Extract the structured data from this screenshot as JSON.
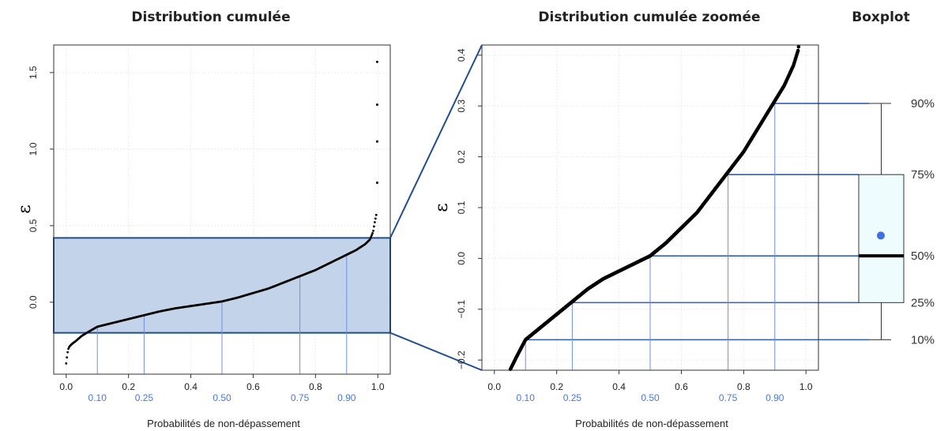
{
  "colors": {
    "points": "#000000",
    "guide": "#2e5fbf",
    "guide_light": "#6f8fe0",
    "highlight_fill": "#b9cbe6",
    "highlight_stroke": "#1f4e8c",
    "box_fill": "#eefcfd",
    "mean_point": "#3f6fe0",
    "blue_tick": "#4a78d6"
  },
  "chart_data": [
    {
      "id": "left",
      "type": "scatter",
      "title": "Distribution cumulée",
      "xlabel": "Probabilités de non-dépassement",
      "ylabel": "ε",
      "xlim": [
        -0.04,
        1.04
      ],
      "ylim": [
        -0.47,
        1.68
      ],
      "xticks": [
        "0.0",
        "0.2",
        "0.4",
        "0.6",
        "0.8",
        "1.0"
      ],
      "yticks": [
        "0.0",
        "0.5",
        "1.0",
        "1.5"
      ],
      "probability_ticks": [
        "0.10",
        "0.25",
        "0.50",
        "0.75",
        "0.90"
      ],
      "grid": true,
      "highlight_band": {
        "ymin": -0.2,
        "ymax": 0.42
      },
      "quantile_points": [
        {
          "p": 0.1,
          "e": -0.16
        },
        {
          "p": 0.25,
          "e": -0.085
        },
        {
          "p": 0.5,
          "e": 0.005
        },
        {
          "p": 0.75,
          "e": 0.17
        },
        {
          "p": 0.9,
          "e": 0.31
        }
      ],
      "curve": [
        [
          0.0,
          -0.4
        ],
        [
          0.003,
          -0.35
        ],
        [
          0.006,
          -0.31
        ],
        [
          0.01,
          -0.29
        ],
        [
          0.02,
          -0.27
        ],
        [
          0.03,
          -0.255
        ],
        [
          0.05,
          -0.22
        ],
        [
          0.07,
          -0.195
        ],
        [
          0.1,
          -0.16
        ],
        [
          0.15,
          -0.135
        ],
        [
          0.2,
          -0.11
        ],
        [
          0.25,
          -0.085
        ],
        [
          0.3,
          -0.06
        ],
        [
          0.35,
          -0.04
        ],
        [
          0.4,
          -0.025
        ],
        [
          0.45,
          -0.01
        ],
        [
          0.5,
          0.005
        ],
        [
          0.55,
          0.03
        ],
        [
          0.6,
          0.06
        ],
        [
          0.65,
          0.09
        ],
        [
          0.7,
          0.13
        ],
        [
          0.75,
          0.17
        ],
        [
          0.8,
          0.21
        ],
        [
          0.85,
          0.26
        ],
        [
          0.9,
          0.31
        ],
        [
          0.93,
          0.34
        ],
        [
          0.96,
          0.38
        ],
        [
          0.975,
          0.41
        ],
        [
          0.985,
          0.46
        ],
        [
          0.99,
          0.52
        ],
        [
          0.995,
          0.57
        ]
      ],
      "outliers": [
        [
          0.998,
          0.78
        ],
        [
          0.998,
          1.05
        ],
        [
          0.998,
          1.29
        ],
        [
          0.998,
          1.57
        ]
      ]
    },
    {
      "id": "right",
      "type": "scatter",
      "title": "Distribution cumulée zoomée",
      "xlabel": "Probabilités de non-dépassement",
      "ylabel": "ε",
      "xlim": [
        -0.04,
        1.04
      ],
      "ylim": [
        -0.22,
        0.42
      ],
      "xticks": [
        "0.0",
        "0.2",
        "0.4",
        "0.6",
        "0.8",
        "1.0"
      ],
      "yticks": [
        "-0.2",
        "-0.1",
        "0.0",
        "0.1",
        "0.2",
        "0.3",
        "0.4"
      ],
      "probability_ticks": [
        "0.10",
        "0.25",
        "0.50",
        "0.75",
        "0.90"
      ],
      "grid": true,
      "quantile_points": [
        {
          "p": 0.1,
          "e": -0.16
        },
        {
          "p": 0.25,
          "e": -0.087
        },
        {
          "p": 0.5,
          "e": 0.005
        },
        {
          "p": 0.75,
          "e": 0.165
        },
        {
          "p": 0.9,
          "e": 0.305
        }
      ]
    },
    {
      "id": "boxplot",
      "type": "boxplot",
      "title": "Boxplot",
      "p10": -0.16,
      "p25": -0.087,
      "median": 0.005,
      "mean": 0.045,
      "p75": 0.165,
      "p90": 0.305,
      "percent_labels": [
        "10%",
        "25%",
        "50%",
        "75%",
        "90%"
      ]
    }
  ]
}
